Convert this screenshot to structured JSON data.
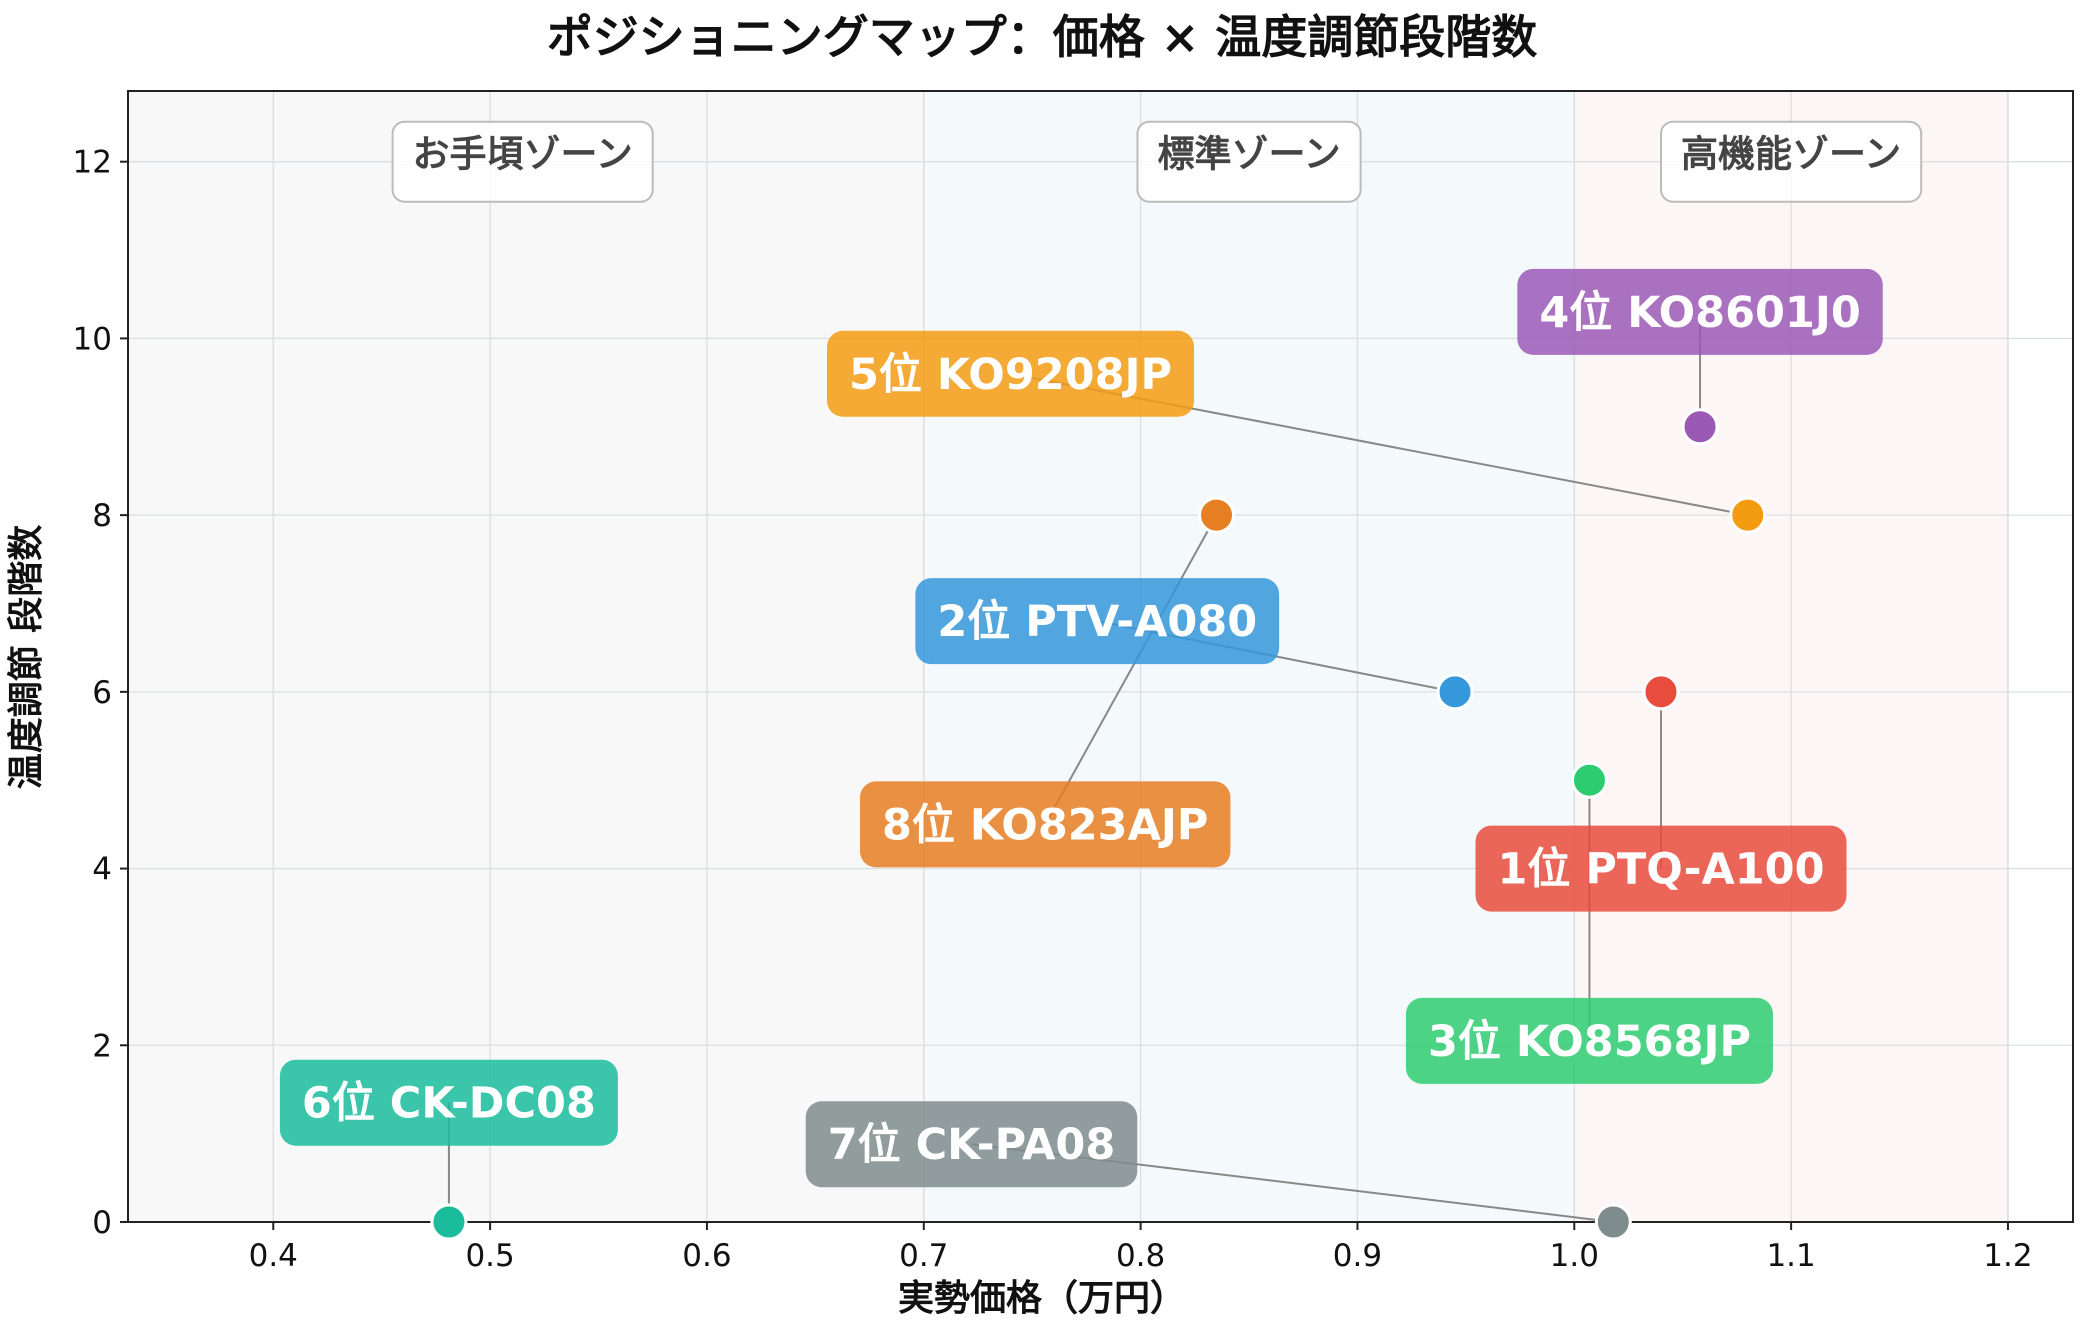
{
  "chart_data": {
    "type": "scatter",
    "title": "ポジショニングマップ：価格 × 温度調節段階数",
    "xlabel": "実勢価格（万円）",
    "ylabel": "温度調節 段階数",
    "xlim": [
      0.333,
      1.23
    ],
    "ylim": [
      0,
      12.8
    ],
    "x_ticks": [
      "0.4",
      "0.5",
      "0.6",
      "0.7",
      "0.8",
      "0.9",
      "1.0",
      "1.1",
      "1.2"
    ],
    "x_tick_values": [
      0.4,
      0.5,
      0.6,
      0.7,
      0.8,
      0.9,
      1.0,
      1.1,
      1.2
    ],
    "y_ticks": [
      "0",
      "2",
      "4",
      "6",
      "8",
      "10",
      "12"
    ],
    "y_tick_values": [
      0,
      2,
      4,
      6,
      8,
      10,
      12
    ],
    "grid": true,
    "zones": [
      {
        "label": "お手頃ゾーン",
        "x_from": 0.333,
        "x_to": 0.7,
        "label_x": 0.515,
        "color": "#f7f8f7"
      },
      {
        "label": "標準ゾーン",
        "x_from": 0.7,
        "x_to": 1.0,
        "label_x": 0.85,
        "color": "#f4f9fc"
      },
      {
        "label": "高機能ゾーン",
        "x_from": 1.0,
        "x_to": 1.2,
        "label_x": 1.1,
        "color": "#fcf6f6"
      }
    ],
    "points": [
      {
        "label": "1位 PTQ-A100",
        "x": 1.04,
        "y": 6,
        "label_x": 1.04,
        "label_y": 4,
        "color": "#e74c3c"
      },
      {
        "label": "2位 PTV-A080",
        "x": 0.945,
        "y": 6,
        "label_x": 0.78,
        "label_y": 6.8,
        "color": "#3498db"
      },
      {
        "label": "3位 KO8568JP",
        "x": 1.007,
        "y": 5,
        "label_x": 1.007,
        "label_y": 2.05,
        "color": "#2ecc71"
      },
      {
        "label": "4位 KO8601J0",
        "x": 1.058,
        "y": 9,
        "label_x": 1.058,
        "label_y": 10.3,
        "color": "#9b59b6"
      },
      {
        "label": "5位 KO9208JP",
        "x": 1.08,
        "y": 8,
        "label_x": 0.74,
        "label_y": 9.6,
        "color": "#f39c12"
      },
      {
        "label": "6位 CK-DC08",
        "x": 0.481,
        "y": 0,
        "label_x": 0.481,
        "label_y": 1.35,
        "color": "#1abc9c"
      },
      {
        "label": "7位 CK-PA08",
        "x": 1.018,
        "y": 0,
        "label_x": 0.722,
        "label_y": 0.88,
        "color": "#7f8c8d"
      },
      {
        "label": "8位 KO823AJP",
        "x": 0.835,
        "y": 8,
        "label_x": 0.756,
        "label_y": 4.5,
        "color": "#e67e22"
      }
    ]
  }
}
